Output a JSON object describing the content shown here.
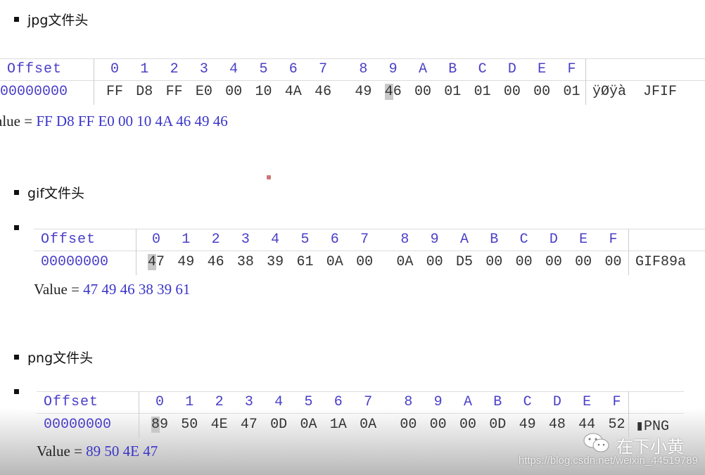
{
  "sections": [
    {
      "title": "jpg文件头",
      "offset_label": "Offset",
      "columns": [
        "0",
        "1",
        "2",
        "3",
        "4",
        "5",
        "6",
        "7",
        "8",
        "9",
        "A",
        "B",
        "C",
        "D",
        "E",
        "F"
      ],
      "row_offset": "00000000",
      "bytes": [
        "FF",
        "D8",
        "FF",
        "E0",
        "00",
        "10",
        "4A",
        "46",
        "49",
        "46",
        "00",
        "01",
        "01",
        "00",
        "00",
        "01"
      ],
      "highlight_index": 9,
      "ascii": "ÿØÿà  JFIF",
      "value_label": "alue = ",
      "value": "FF D8 FF E0 00 10 4A 46 49 46"
    },
    {
      "title": "gif文件头",
      "offset_label": "Offset",
      "columns": [
        "0",
        "1",
        "2",
        "3",
        "4",
        "5",
        "6",
        "7",
        "8",
        "9",
        "A",
        "B",
        "C",
        "D",
        "E",
        "F"
      ],
      "row_offset": "00000000",
      "bytes": [
        "47",
        "49",
        "46",
        "38",
        "39",
        "61",
        "0A",
        "00",
        "0A",
        "00",
        "D5",
        "00",
        "00",
        "00",
        "00",
        "00"
      ],
      "highlight_index": 0,
      "ascii": "GIF89a",
      "value_label": "Value = ",
      "value": "47 49 46 38 39 61"
    },
    {
      "title": "png文件头",
      "offset_label": "Offset",
      "columns": [
        "0",
        "1",
        "2",
        "3",
        "4",
        "5",
        "6",
        "7",
        "8",
        "9",
        "A",
        "B",
        "C",
        "D",
        "E",
        "F"
      ],
      "row_offset": "00000000",
      "bytes": [
        "89",
        "50",
        "4E",
        "47",
        "0D",
        "0A",
        "1A",
        "0A",
        "00",
        "00",
        "00",
        "0D",
        "49",
        "48",
        "44",
        "52"
      ],
      "highlight_index": 0,
      "ascii": "▮PNG",
      "value_label": "Value = ",
      "value": "89 50 4E 47"
    }
  ],
  "watermark": {
    "name": "在下小黄",
    "url": "https://blog.csdn.net/weixin_44519789",
    "icon": "wechat-icon"
  },
  "colors": {
    "header": "#4a3fc8",
    "value": "#3a35c8",
    "highlight": "#c8c8c8"
  }
}
